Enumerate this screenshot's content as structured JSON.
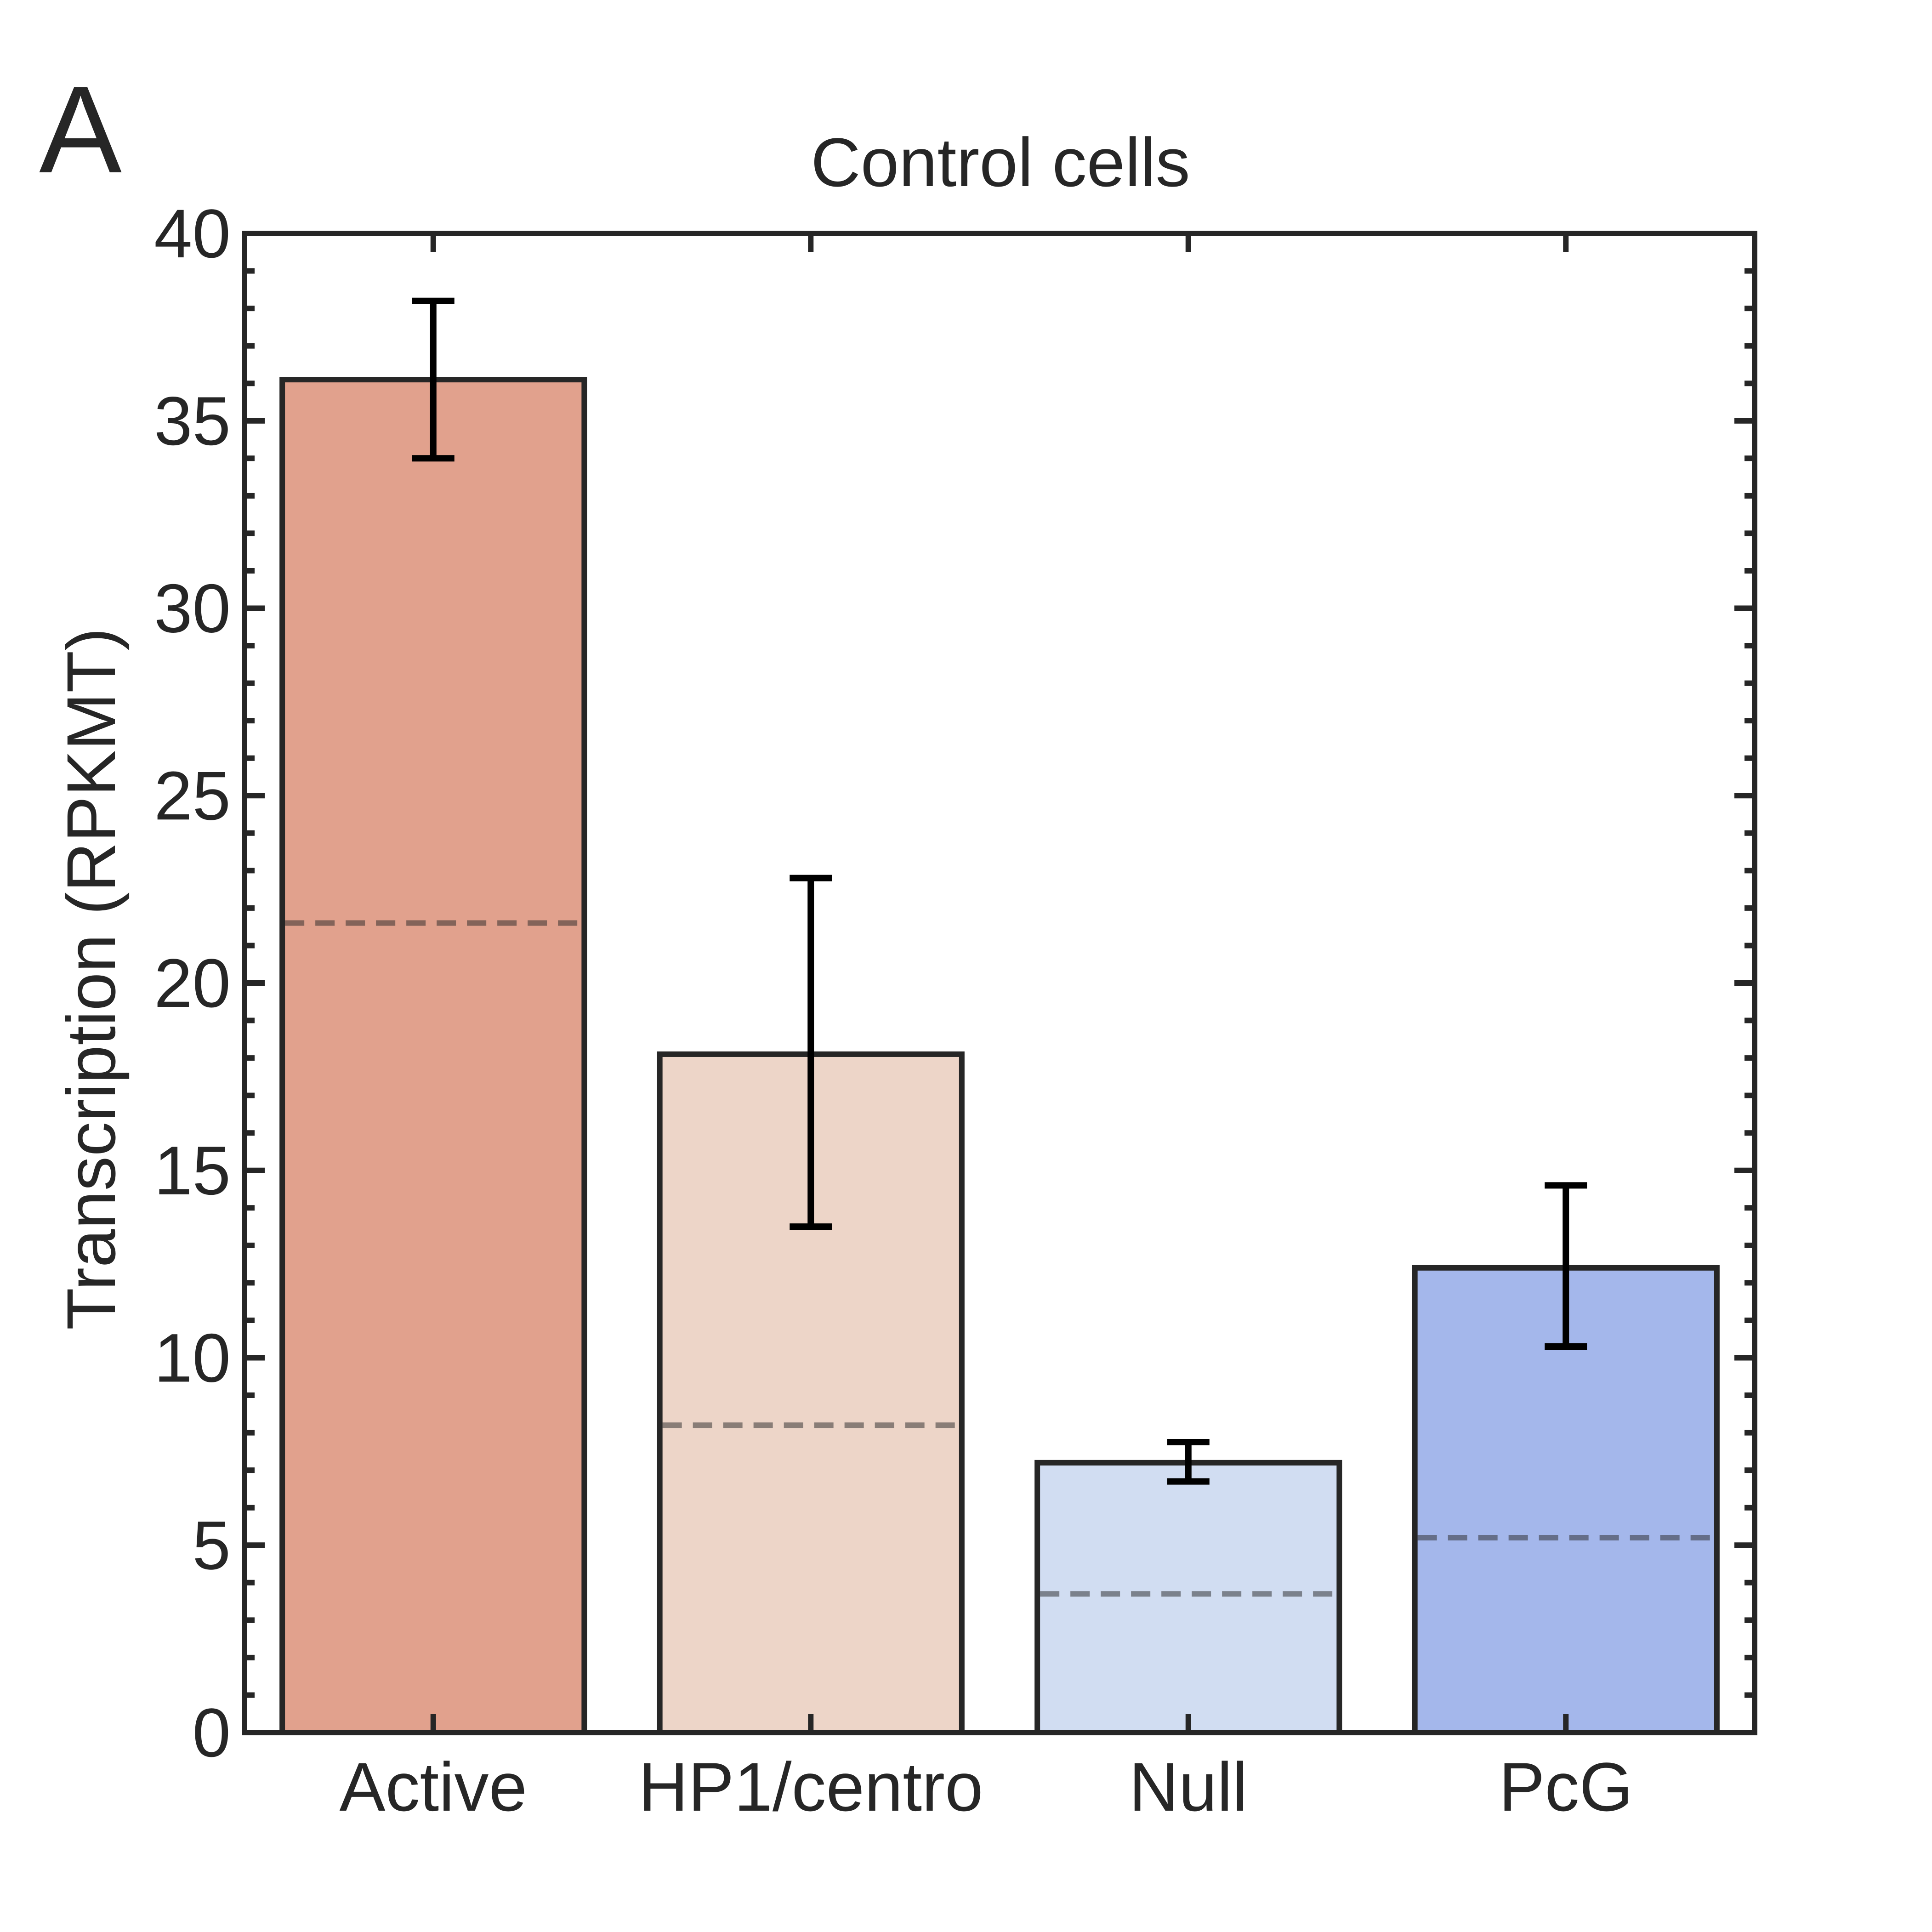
{
  "panel_label": "A",
  "chart_data": {
    "type": "bar",
    "title": "Control cells",
    "xlabel": "",
    "ylabel": "Transcription (RPKMT)",
    "ylim": [
      0,
      40
    ],
    "yticks": [
      0,
      5,
      10,
      15,
      20,
      25,
      30,
      35,
      40
    ],
    "grid": false,
    "legend": "none",
    "categories": [
      "Active",
      "HP1/centro",
      "Null",
      "PcG"
    ],
    "values": [
      36.1,
      18.1,
      7.2,
      12.4
    ],
    "error_low": [
      34.0,
      13.5,
      6.7,
      10.3
    ],
    "error_high": [
      38.2,
      22.8,
      7.75,
      14.6
    ],
    "median_lines": [
      21.6,
      8.2,
      3.7,
      5.2
    ],
    "colors": [
      "#d8866d",
      "#e8c9b8",
      "#c4d3ee",
      "#8ba3e6"
    ],
    "line_color": "#262626"
  }
}
